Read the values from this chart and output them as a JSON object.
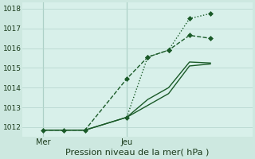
{
  "xlabel": "Pression niveau de la mer( hPa )",
  "background_color": "#cde8e0",
  "plot_bg_color": "#d8f0ea",
  "grid_color": "#b8d8d0",
  "line_color": "#1a5a28",
  "ylim": [
    1011.5,
    1018.3
  ],
  "yticks": [
    1012,
    1013,
    1014,
    1015,
    1016,
    1017,
    1018
  ],
  "xtick_labels": [
    "Mer",
    "Jeu"
  ],
  "xtick_positions": [
    1,
    5
  ],
  "xlim": [
    0,
    11
  ],
  "series1_x": [
    1,
    2,
    3,
    5,
    6,
    7,
    8,
    9
  ],
  "series1_y": [
    1011.85,
    1011.85,
    1011.85,
    1014.45,
    1015.55,
    1015.9,
    1016.65,
    1016.5
  ],
  "series2_x": [
    1,
    2,
    3,
    5,
    6,
    7,
    8,
    9
  ],
  "series2_y": [
    1011.85,
    1011.85,
    1011.85,
    1012.5,
    1013.1,
    1013.7,
    1015.1,
    1015.2
  ],
  "series3_x": [
    1,
    2,
    3,
    5,
    6,
    7,
    8,
    9
  ],
  "series3_y": [
    1011.85,
    1011.85,
    1011.85,
    1012.5,
    1013.4,
    1014.0,
    1015.3,
    1015.25
  ],
  "series4_x": [
    5,
    6,
    7,
    8,
    9
  ],
  "series4_y": [
    1012.5,
    1015.55,
    1015.9,
    1017.5,
    1017.75
  ],
  "vline_positions": [
    1,
    5
  ],
  "vline_color": "#7aaa9a",
  "marker_size": 3.0,
  "linewidth": 1.0,
  "xlabel_fontsize": 8,
  "ytick_fontsize": 6.5,
  "xtick_fontsize": 7
}
